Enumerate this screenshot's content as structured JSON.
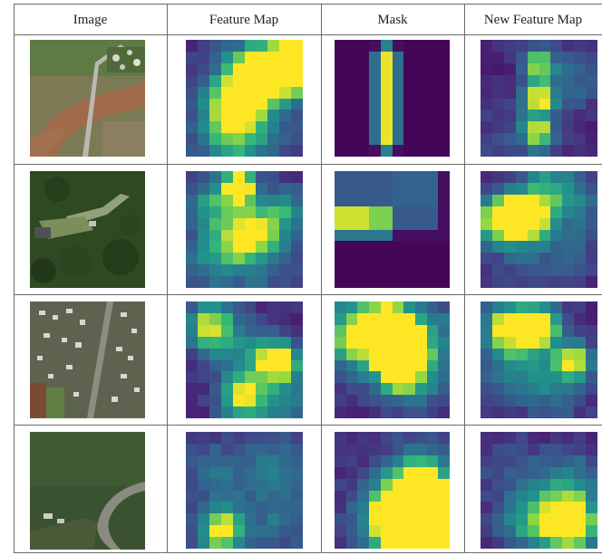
{
  "table": {
    "columns": [
      "Image",
      "Feature Map",
      "Mask",
      "New Feature Map"
    ]
  },
  "rows": [
    {
      "photo": "aerial-river-road",
      "feature_map": {
        "grid": 10,
        "hotspots": [
          [
            3.5,
            7.5,
            2.4,
            0.55
          ],
          [
            4,
            5,
            2.0,
            0.5
          ],
          [
            4.5,
            2.5,
            1.8,
            0.5
          ],
          [
            6.5,
            1.7,
            1.6,
            0.55
          ],
          [
            8.5,
            2.0,
            1.5,
            0.95
          ],
          [
            9,
            1,
            1.2,
            0.6
          ],
          [
            7,
            4,
            3,
            0.2
          ]
        ]
      },
      "mask": {
        "grid": 10,
        "hotspots": [],
        "stripe": true
      },
      "new_feature_map": {
        "grid": 10,
        "hotspots": [
          [
            4.5,
            4.5,
            1.0,
            0.9
          ],
          [
            4.5,
            1.5,
            1.0,
            0.75
          ],
          [
            4.5,
            7.5,
            1.0,
            0.8
          ],
          [
            7.5,
            3,
            1.8,
            0.25
          ],
          [
            2,
            8,
            2.0,
            0.15
          ]
        ]
      }
    },
    {
      "photo": "aerial-forest-houses",
      "feature_map": {
        "grid": 10,
        "hotspots": [
          [
            4.2,
            0.8,
            1.0,
            1.0
          ],
          [
            2,
            2,
            1.6,
            0.5
          ],
          [
            5.5,
            4.5,
            1.6,
            0.5
          ],
          [
            3,
            5.5,
            1.8,
            0.4
          ],
          [
            8,
            3,
            1.6,
            0.4
          ],
          [
            6,
            7,
            2.2,
            0.3
          ],
          [
            1.5,
            7.5,
            2.0,
            0.25
          ]
        ]
      },
      "mask": {
        "grid": 10,
        "hotspots": [],
        "mask_corner": true
      },
      "new_feature_map": {
        "grid": 10,
        "hotspots": [
          [
            2.5,
            3.5,
            1.4,
            0.85
          ],
          [
            1,
            3.5,
            1.4,
            0.7
          ],
          [
            4,
            3.5,
            1.2,
            0.5
          ],
          [
            5,
            1,
            1.6,
            0.45
          ],
          [
            7.5,
            2,
            1.8,
            0.35
          ],
          [
            3,
            6.5,
            2.0,
            0.2
          ],
          [
            7,
            6.5,
            2.0,
            0.2
          ]
        ]
      }
    },
    {
      "photo": "aerial-village-road",
      "feature_map": {
        "grid": 10,
        "hotspots": [
          [
            1.5,
            1.5,
            1.4,
            0.7
          ],
          [
            7.5,
            4.5,
            1.2,
            1.0
          ],
          [
            4.5,
            8,
            1.4,
            0.7
          ],
          [
            3.5,
            3,
            2.0,
            0.3
          ],
          [
            5.5,
            6,
            2.0,
            0.3
          ],
          [
            8.5,
            8,
            1.6,
            0.3
          ]
        ]
      },
      "mask": {
        "grid": 10,
        "hotspots": [
          [
            4.7,
            1.5,
            1.2,
            1.0
          ],
          [
            5,
            3.5,
            1.5,
            0.85
          ],
          [
            5.2,
            5.5,
            1.6,
            0.7
          ],
          [
            2.5,
            2,
            2.2,
            0.55
          ],
          [
            1,
            2.5,
            2.0,
            0.45
          ],
          [
            8,
            2,
            2.0,
            0.35
          ],
          [
            7,
            6,
            2.0,
            0.3
          ]
        ]
      },
      "new_feature_map": {
        "grid": 10,
        "hotspots": [
          [
            4.5,
            1.5,
            1.2,
            0.95
          ],
          [
            1.5,
            1.5,
            1.2,
            0.75
          ],
          [
            7.5,
            4.5,
            1.1,
            0.85
          ],
          [
            3,
            3,
            2.0,
            0.45
          ],
          [
            6,
            7,
            1.8,
            0.35
          ],
          [
            2,
            6,
            1.8,
            0.25
          ]
        ]
      }
    },
    {
      "photo": "aerial-hillside-forest",
      "feature_map": {
        "grid": 10,
        "hotspots": [
          [
            2.5,
            8,
            1.2,
            0.95
          ],
          [
            5,
            5,
            3.5,
            0.2
          ],
          [
            7.5,
            2,
            1.8,
            0.25
          ],
          [
            2,
            3,
            1.8,
            0.2
          ],
          [
            8,
            7,
            1.8,
            0.2
          ]
        ]
      },
      "mask": {
        "grid": 10,
        "hotspots": [
          [
            7,
            7.5,
            1.8,
            1.0
          ],
          [
            7.5,
            7.3,
            2.2,
            0.9
          ],
          [
            5.5,
            7.5,
            2.0,
            0.7
          ],
          [
            7,
            5,
            2.2,
            0.55
          ],
          [
            4,
            6.5,
            2.2,
            0.35
          ],
          [
            7,
            3,
            2.2,
            0.3
          ]
        ]
      },
      "new_feature_map": {
        "grid": 10,
        "hotspots": [
          [
            7.3,
            7.5,
            1.5,
            1.0
          ],
          [
            5.5,
            7,
            1.6,
            0.5
          ],
          [
            3,
            7.5,
            1.6,
            0.35
          ],
          [
            8,
            4,
            1.8,
            0.35
          ],
          [
            5,
            4,
            2.0,
            0.2
          ],
          [
            2,
            3,
            2.0,
            0.15
          ]
        ]
      }
    }
  ]
}
